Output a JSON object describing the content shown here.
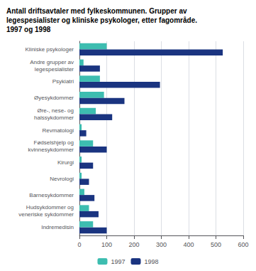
{
  "chart_data": {
    "type": "bar",
    "orientation": "horizontal",
    "title": "Antall driftsavtaler med fylkeskommunen. Grupper av\nlegespesialister og kliniske psykologer, etter fagområde.\n1997 og 1998",
    "categories": [
      "Kliniske psykologer",
      "Andre grupper av\nlegespesialister",
      "Psykiatri",
      "Øyesykdommer",
      "Øre-, nese- og\nhalssykdommer",
      "Revmatologi",
      "Fødselshjelp og\nkvinnesykdommer",
      "Kirurgi",
      "Nevrologi",
      "Barnesykdommer",
      "Hudsykdommer og\nveneriske sykdommer",
      "Indremedisin"
    ],
    "series": [
      {
        "name": "1997",
        "color": "#3dbdb0",
        "values": [
          100,
          15,
          75,
          90,
          60,
          8,
          50,
          8,
          8,
          18,
          35,
          50
        ]
      },
      {
        "name": "1998",
        "color": "#1a3480",
        "values": [
          525,
          75,
          295,
          165,
          120,
          25,
          100,
          50,
          35,
          55,
          70,
          100
        ]
      }
    ],
    "xlim": [
      0,
      600
    ],
    "xticks": [
      0,
      100,
      200,
      300,
      400,
      500,
      600
    ],
    "grid": true,
    "legend": "bottom"
  }
}
